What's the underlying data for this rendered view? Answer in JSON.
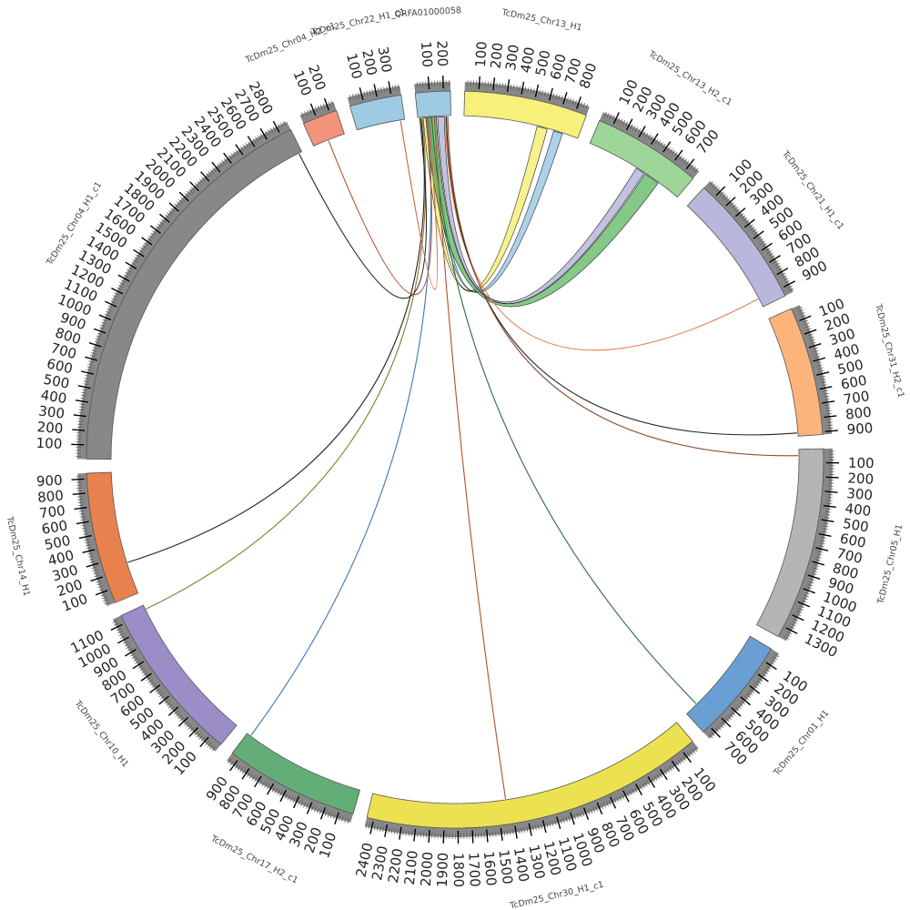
{
  "colors": {
    "scale_band": "#888888",
    "tick_line": "#000000",
    "outline": "#555555"
  },
  "chromosomes": [
    {
      "name": "TcDm25_Chr13_H1",
      "length": 880,
      "color": "#f7f07a",
      "ticks": [
        "100",
        "200",
        "300",
        "400",
        "500",
        "600",
        "700",
        "800"
      ]
    },
    {
      "name": "TcDm25_Chr13_H2_c1",
      "length": 780,
      "color": "#9ed69a",
      "ticks": [
        "100",
        "200",
        "300",
        "400",
        "500",
        "600",
        "700"
      ]
    },
    {
      "name": "TcDm25_Chr21_H1_c1",
      "length": 960,
      "color": "#b9b7dc",
      "ticks": [
        "100",
        "200",
        "300",
        "400",
        "500",
        "600",
        "700",
        "800",
        "900"
      ]
    },
    {
      "name": "TcDm25_Chr31_H2_c1",
      "length": 920,
      "color": "#fdb47a",
      "ticks": [
        "100",
        "200",
        "300",
        "400",
        "500",
        "600",
        "700",
        "800",
        "900"
      ]
    },
    {
      "name": "TcDm25_Chr05_H1",
      "length": 1380,
      "color": "#b5b5b5",
      "ticks": [
        "100",
        "200",
        "300",
        "400",
        "500",
        "600",
        "700",
        "800",
        "900",
        "1000",
        "1100",
        "1200",
        "1300"
      ]
    },
    {
      "name": "TcDm25_Chr01_H1",
      "length": 760,
      "color": "#6a9fd3",
      "ticks": [
        "100",
        "200",
        "300",
        "400",
        "500",
        "600",
        "700"
      ]
    },
    {
      "name": "TcDm25_Chr30_H1_c1",
      "length": 2450,
      "color": "#ece151",
      "ticks": [
        "100",
        "200",
        "300",
        "400",
        "500",
        "600",
        "700",
        "800",
        "900",
        "1000",
        "1100",
        "1200",
        "1300",
        "1400",
        "1500",
        "1600",
        "1700",
        "1800",
        "1900",
        "2000",
        "2100",
        "2200",
        "2300",
        "2400"
      ]
    },
    {
      "name": "TcDm25_Chr17_H2_c1",
      "length": 960,
      "color": "#63ae78",
      "ticks": [
        "100",
        "200",
        "300",
        "400",
        "500",
        "600",
        "700",
        "800",
        "900"
      ]
    },
    {
      "name": "TcDm25_Chr10_H1",
      "length": 1160,
      "color": "#9b8dc8",
      "ticks": [
        "100",
        "200",
        "300",
        "400",
        "500",
        "600",
        "700",
        "800",
        "900",
        "1000",
        "1100"
      ]
    },
    {
      "name": "TcDm25_Chr14_H1",
      "length": 940,
      "color": "#e8814d",
      "ticks": [
        "100",
        "200",
        "300",
        "400",
        "500",
        "600",
        "700",
        "800",
        "900"
      ]
    },
    {
      "name": "TcDm25_Chr04_H1_c1",
      "length": 2880,
      "color": "#888888",
      "ticks": [
        "100",
        "200",
        "300",
        "400",
        "500",
        "600",
        "700",
        "800",
        "900",
        "1000",
        "1100",
        "1200",
        "1300",
        "1400",
        "1500",
        "1600",
        "1700",
        "1800",
        "1900",
        "2000",
        "2100",
        "2200",
        "2300",
        "2400",
        "2500",
        "2600",
        "2700",
        "2800"
      ]
    },
    {
      "name": "TcDm25_Chr04_H2_c1",
      "length": 250,
      "color": "#f4937c",
      "ticks": [
        "100",
        "200"
      ]
    },
    {
      "name": "TcDm25_Chr22_H1_c1",
      "length": 370,
      "color": "#9ecae3",
      "ticks": [
        "100",
        "200",
        "300"
      ]
    },
    {
      "name": "QRFA01000058",
      "length": 250,
      "color": "#9ecae3",
      "ticks": [
        "100",
        "200"
      ]
    }
  ],
  "links": [
    {
      "from": [
        13,
        40,
        90
      ],
      "to": [
        0,
        560,
        640
      ],
      "color": "#f7f07a"
    },
    {
      "from": [
        13,
        95,
        140
      ],
      "to": [
        0,
        690,
        760
      ],
      "color": "#9ecae3"
    },
    {
      "from": [
        13,
        150,
        200
      ],
      "to": [
        1,
        400,
        470
      ],
      "color": "#b9b7dc"
    },
    {
      "from": [
        13,
        60,
        140
      ],
      "to": [
        1,
        480,
        600
      ],
      "color": "#6fbf73"
    },
    {
      "from": [
        13,
        200,
        215
      ],
      "to": [
        2,
        880,
        900
      ],
      "color": "#e8814d"
    },
    {
      "from": [
        13,
        210,
        222
      ],
      "to": [
        3,
        890,
        900
      ],
      "color": "#222222"
    },
    {
      "from": [
        13,
        222,
        232
      ],
      "to": [
        4,
        40,
        55
      ],
      "color": "#8c4a2f"
    },
    {
      "from": [
        13,
        100,
        110
      ],
      "to": [
        5,
        650,
        660
      ],
      "color": "#2b6e3a"
    },
    {
      "from": [
        13,
        120,
        130
      ],
      "to": [
        6,
        1430,
        1445
      ],
      "color": "#b45028"
    },
    {
      "from": [
        13,
        70,
        80
      ],
      "to": [
        7,
        920,
        935
      ],
      "color": "#3c78b4"
    },
    {
      "from": [
        13,
        30,
        40
      ],
      "to": [
        8,
        1120,
        1130
      ],
      "color": "#8b7a2b"
    },
    {
      "from": [
        13,
        20,
        30
      ],
      "to": [
        9,
        240,
        250
      ],
      "color": "#222222"
    },
    {
      "from": [
        13,
        10,
        20
      ],
      "to": [
        10,
        2850,
        2860
      ],
      "color": "#222222"
    },
    {
      "from": [
        11,
        110,
        130
      ],
      "to": [
        13,
        60,
        70
      ],
      "color": "#b45028"
    },
    {
      "from": [
        12,
        330,
        345
      ],
      "to": [
        13,
        80,
        88
      ],
      "color": "#d0603a"
    }
  ]
}
